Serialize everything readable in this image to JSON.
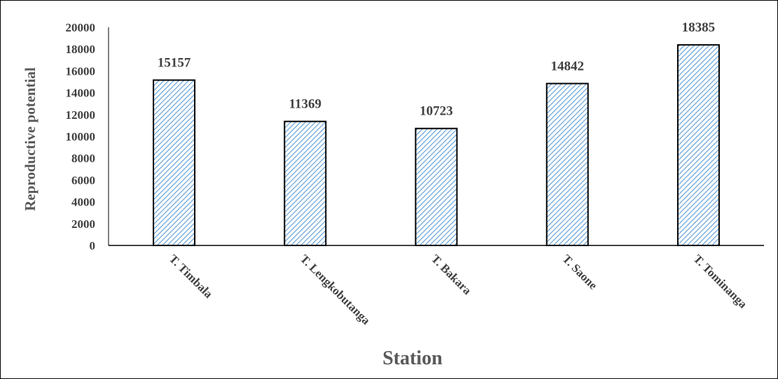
{
  "chart_data": {
    "type": "bar",
    "title": "",
    "xlabel": "Station",
    "ylabel": "Reproductive potential",
    "categories": [
      "T. Timbala",
      "T. Lengkobutanga",
      "T. Bakara",
      "T. Saone",
      "T. Tominanga"
    ],
    "values": [
      15157,
      11369,
      10723,
      14842,
      18385
    ],
    "data_labels": [
      "15157",
      "11369",
      "10723",
      "14842",
      "18385"
    ],
    "yticks": [
      "0",
      "2000",
      "4000",
      "6000",
      "8000",
      "10000",
      "12000",
      "14000",
      "16000",
      "18000",
      "20000"
    ],
    "ylim": [
      0,
      20000
    ],
    "grid": false,
    "legend": "none",
    "bar_fill_pattern": "diagonal-hatch",
    "bar_hatch_color": "#5b9bd5",
    "bar_edge_color": "#000000"
  }
}
